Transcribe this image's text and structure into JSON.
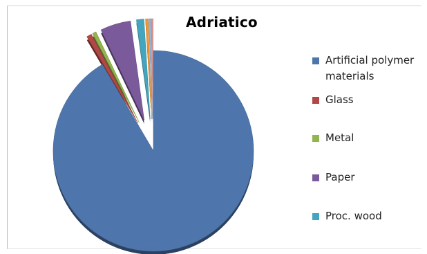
{
  "chart_data": {
    "type": "pie",
    "title": "Adriatico",
    "legend_position": "right",
    "exploded": true,
    "categories": [
      "Artificial polymer materials",
      "Glass",
      "Metal",
      "Paper",
      "Proc. wood"
    ],
    "values": [
      91.5,
      0.8,
      0.6,
      4.9,
      1.2
    ],
    "other_slices": [
      0.4,
      0.3,
      0.3
    ],
    "colors": [
      "#4f76ac",
      "#b24845",
      "#94b44f",
      "#7b5a9b",
      "#44a5bf"
    ],
    "other_colors": [
      "#f2962f",
      "#95b3d7",
      "#d99694"
    ]
  }
}
